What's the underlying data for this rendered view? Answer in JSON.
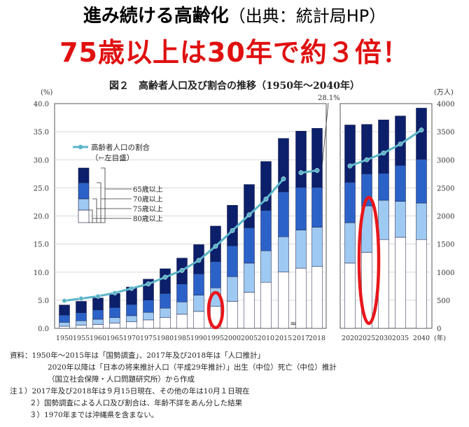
{
  "header": {
    "line1_main": "進み続ける高齢化",
    "line1_paren": "（出典：統計局HP）",
    "line2": "75歳以上は30年で約３倍！"
  },
  "figure_title": "図２　高齢者人口及び割合の推移（1950年～2040年）",
  "colors": {
    "age80": "#ffffff",
    "age75": "#9ec9f2",
    "age70": "#2b62c8",
    "age65": "#0b1f6b",
    "line": "#5ab4c8",
    "highlight": "#e8161b"
  },
  "chart_data": {
    "type": "bar",
    "stacked": true,
    "categories": [
      "1950",
      "1955",
      "1960",
      "1965",
      "1970",
      "1975",
      "1980",
      "1985",
      "1990",
      "1995",
      "2000",
      "2005",
      "2010",
      "2015",
      "2017",
      "2018",
      "2020",
      "2025",
      "2030",
      "2035",
      "2040"
    ],
    "x_tick_suffix": "(年)",
    "y_left": {
      "label": "(%)",
      "ylim": [
        0,
        40
      ],
      "ticks": [
        "0.0",
        "5.0",
        "10.0",
        "15.0",
        "20.0",
        "25.0",
        "30.0",
        "35.0",
        "40.0"
      ]
    },
    "y_right": {
      "label": "(万人)",
      "ylim": [
        0,
        4000
      ],
      "ticks": [
        "0",
        "500",
        "1000",
        "1500",
        "2000",
        "2500",
        "3000",
        "3500",
        "4000"
      ]
    },
    "series": [
      {
        "name": "80歳以上",
        "values": [
          37,
          54,
          67,
          90,
          115,
          150,
          190,
          250,
          300,
          390,
          480,
          640,
          820,
          1000,
          1070,
          1100,
          1160,
          1350,
          1580,
          1620,
          1580
        ]
      },
      {
        "name": "75歳以上",
        "values": [
          70,
          80,
          95,
          100,
          110,
          135,
          170,
          220,
          290,
          330,
          440,
          520,
          560,
          630,
          680,
          700,
          720,
          830,
          700,
          640,
          650
        ]
      },
      {
        "name": "70歳以上",
        "values": [
          130,
          145,
          165,
          180,
          200,
          220,
          260,
          320,
          380,
          470,
          550,
          630,
          720,
          800,
          760,
          710,
          720,
          570,
          480,
          640,
          780
        ]
      },
      {
        "name": "65歳以上",
        "values": [
          178,
          201,
          213,
          250,
          310,
          370,
          440,
          460,
          520,
          630,
          720,
          770,
          870,
          950,
          1000,
          1050,
          1020,
          880,
          950,
          880,
          910
        ]
      }
    ],
    "line_series": {
      "name": "高齢者人口の割合",
      "note": "（←左目盛）",
      "values": [
        4.9,
        5.3,
        5.7,
        6.3,
        7.1,
        7.9,
        9.1,
        10.3,
        12.1,
        14.6,
        17.4,
        20.2,
        23.0,
        26.6,
        27.7,
        28.1,
        28.9,
        30.0,
        31.2,
        32.8,
        35.3
      ]
    },
    "peak_annotation": "28.1%",
    "legend_box_labels": [
      "65歳以上",
      "70歳以上",
      "75歳以上",
      "80歳以上"
    ],
    "grid": true
  },
  "notes": [
    "資料：1950年～2015年は「国勢調査」、2017年及び2018年は「人口推計」",
    "2020年以降は「日本の将来推計人口（平成29年推計）」出生（中位）死亡（中位）推計",
    "（国立社会保障・人口問題研究所）から作成",
    "注１）2017年及び2018年は９月15日現在、その他の年は10月１日現在",
    "２）国勢調査による人口及び割合は、年齢不詳をあん分した結果",
    "３）1970年までは沖縄県を含まない。"
  ]
}
